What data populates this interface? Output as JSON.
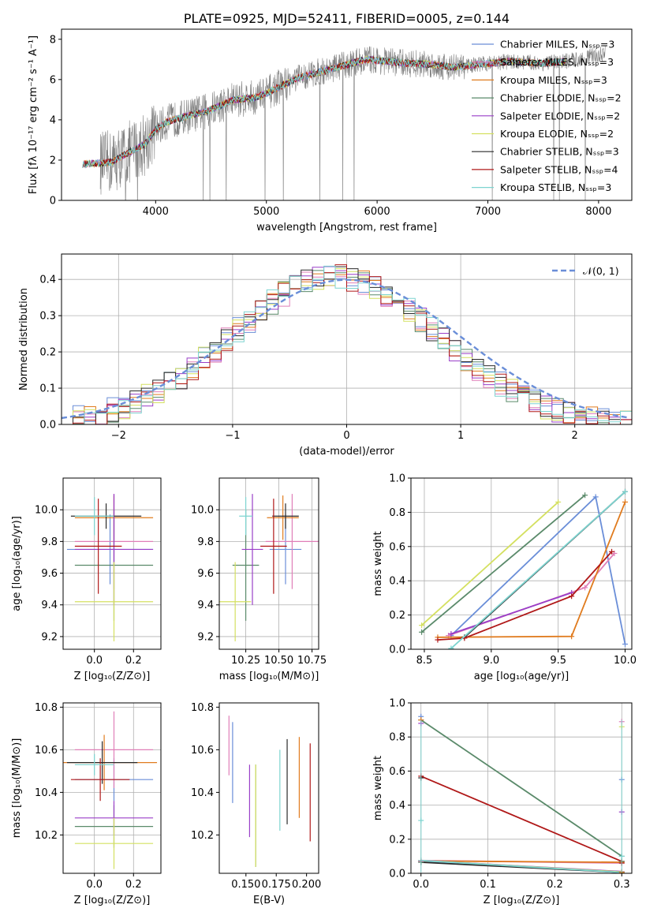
{
  "colors": {
    "Chabrier MILES": "#6a8ed8",
    "Salpeter MILES": "#e07fb8",
    "Kroupa MILES": "#e07b1e",
    "Chabrier ELODIE": "#5a8a6a",
    "Salpeter ELODIE": "#9a3fc8",
    "Kroupa ELODIE": "#d4e060",
    "Chabrier STELIB": "#2a2a2a",
    "Salpeter STELIB": "#b01818",
    "Kroupa STELIB": "#7dd4d0",
    "data": "#808080",
    "normal": "#6a8ed8"
  },
  "chart_data": [
    {
      "id": "spectrum",
      "type": "line",
      "title": "PLATE=0925, MJD=52411, FIBERID=0005, z=0.144",
      "xlabel": "wavelength [Angstrom, rest frame]",
      "ylabel": "Flux [fλ 10⁻¹⁷ erg cm⁻² s⁻¹ A⁻¹]",
      "xlim": [
        3150,
        8300
      ],
      "ylim": [
        0,
        8.5
      ],
      "xticks": [
        "4000",
        "5000",
        "6000",
        "7000",
        "8000"
      ],
      "yticks": [
        "0",
        "2",
        "4",
        "6",
        "8"
      ],
      "grid": false,
      "legend_position": "top-right",
      "legend": [
        "Chabrier MILES, Nₛₛₚ=3",
        "Salpeter MILES, Nₛₛₚ=3",
        "Kroupa MILES, Nₛₛₚ=3",
        "Chabrier ELODIE, Nₛₛₚ=2",
        "Salpeter ELODIE, Nₛₛₚ=2",
        "Kroupa ELODIE, Nₛₛₚ=2",
        "Chabrier STELIB, Nₛₛₚ=3",
        "Salpeter STELIB, Nₛₛₚ=4",
        "Kroupa STELIB, Nₛₛₚ=3"
      ],
      "continuum": [
        [
          3340,
          1.8
        ],
        [
          3500,
          1.85
        ],
        [
          3600,
          1.9
        ],
        [
          3800,
          2.5
        ],
        [
          3900,
          2.8
        ],
        [
          4000,
          3.5
        ],
        [
          4100,
          3.9
        ],
        [
          4300,
          4.2
        ],
        [
          4500,
          4.5
        ],
        [
          4700,
          5.0
        ],
        [
          4900,
          5.1
        ],
        [
          5000,
          5.3
        ],
        [
          5100,
          5.6
        ],
        [
          5200,
          5.85
        ],
        [
          5300,
          6.1
        ],
        [
          5500,
          6.4
        ],
        [
          5700,
          6.7
        ],
        [
          5900,
          7.0
        ],
        [
          6100,
          6.9
        ],
        [
          6300,
          6.8
        ],
        [
          6500,
          6.75
        ],
        [
          6700,
          6.6
        ],
        [
          7000,
          6.8
        ],
        [
          7200,
          6.9
        ],
        [
          7500,
          6.8
        ],
        [
          7700,
          6.9
        ],
        [
          7900,
          7.1
        ],
        [
          8060,
          7.3
        ]
      ],
      "data_wavelength_range": [
        3500,
        8060
      ]
    },
    {
      "id": "residuals",
      "type": "line",
      "xlabel": "(data-model)/error",
      "ylabel": "Normed distribution",
      "xlim": [
        -2.5,
        2.5
      ],
      "ylim": [
        0,
        0.47
      ],
      "xticks": [
        "−2",
        "−1",
        "0",
        "1",
        "2"
      ],
      "yticks": [
        "0.0",
        "0.1",
        "0.2",
        "0.3",
        "0.4"
      ],
      "grid": true,
      "legend_position": "top-right",
      "normal_label": "𝒩(0, 1)",
      "hist_bin_width": 0.1
    },
    {
      "id": "age_vs_Z",
      "type": "scatter",
      "xlabel": "Z [log₁₀(Z/Z⊙)]",
      "ylabel": "age  [log₁₀(age/yr)]",
      "xlim": [
        -0.16,
        0.34
      ],
      "ylim": [
        9.12,
        10.2
      ],
      "xticks": [
        "0.0",
        "0.2"
      ],
      "yticks": [
        "9.2",
        "9.4",
        "9.6",
        "9.8",
        "10.0"
      ],
      "grid": true,
      "points": [
        {
          "model": "Chabrier MILES",
          "x": 0.08,
          "y": 9.75,
          "xerr": 0.22,
          "yerr": 0.22
        },
        {
          "model": "Salpeter MILES",
          "x": 0.1,
          "y": 9.8,
          "xerr": 0.2,
          "yerr": 0.3
        },
        {
          "model": "Kroupa MILES",
          "x": 0.1,
          "y": 9.95,
          "xerr": 0.2,
          "yerr": 0.14
        },
        {
          "model": "Chabrier ELODIE",
          "x": 0.1,
          "y": 9.65,
          "xerr": 0.2,
          "yerr": 0.35
        },
        {
          "model": "Salpeter ELODIE",
          "x": 0.1,
          "y": 9.75,
          "xerr": 0.2,
          "yerr": 0.35
        },
        {
          "model": "Kroupa ELODIE",
          "x": 0.1,
          "y": 9.42,
          "xerr": 0.2,
          "yerr": 0.25
        },
        {
          "model": "Chabrier STELIB",
          "x": 0.06,
          "y": 9.96,
          "xerr": 0.18,
          "yerr": 0.08
        },
        {
          "model": "Salpeter STELIB",
          "x": 0.02,
          "y": 9.77,
          "xerr": 0.12,
          "yerr": 0.3
        },
        {
          "model": "Kroupa STELIB",
          "x": 0.0,
          "y": 9.96,
          "xerr": 0.1,
          "yerr": 0.12
        }
      ]
    },
    {
      "id": "age_vs_mass",
      "type": "scatter",
      "xlabel": "mass [log₁₀(M/M⊙)]",
      "ylabel": "",
      "xlim": [
        10.05,
        10.8
      ],
      "ylim": [
        9.12,
        10.2
      ],
      "xticks": [
        "10.25",
        "10.50",
        "10.75"
      ],
      "yticks": [
        "9.2",
        "9.4",
        "9.6",
        "9.8",
        "10.0"
      ],
      "grid": true,
      "points": [
        {
          "model": "Chabrier MILES",
          "x": 10.55,
          "y": 9.75,
          "xerr": 0.12,
          "yerr": 0.22
        },
        {
          "model": "Salpeter MILES",
          "x": 10.6,
          "y": 9.8,
          "xerr": 0.2,
          "yerr": 0.3
        },
        {
          "model": "Kroupa MILES",
          "x": 10.53,
          "y": 9.95,
          "xerr": 0.12,
          "yerr": 0.14
        },
        {
          "model": "Chabrier ELODIE",
          "x": 10.25,
          "y": 9.65,
          "xerr": 0.1,
          "yerr": 0.35
        },
        {
          "model": "Salpeter ELODIE",
          "x": 10.3,
          "y": 9.75,
          "xerr": 0.08,
          "yerr": 0.35
        },
        {
          "model": "Kroupa ELODIE",
          "x": 10.17,
          "y": 9.42,
          "xerr": 0.12,
          "yerr": 0.25
        },
        {
          "model": "Chabrier STELIB",
          "x": 10.55,
          "y": 9.96,
          "xerr": 0.1,
          "yerr": 0.08
        },
        {
          "model": "Salpeter STELIB",
          "x": 10.46,
          "y": 9.77,
          "xerr": 0.1,
          "yerr": 0.3
        },
        {
          "model": "Kroupa STELIB",
          "x": 10.25,
          "y": 9.96,
          "xerr": 0.05,
          "yerr": 0.12
        }
      ]
    },
    {
      "id": "weight_vs_age",
      "type": "line",
      "xlabel": "age  [log₁₀(age/yr)]",
      "ylabel": "mass weight",
      "xlim": [
        8.4,
        10.05
      ],
      "ylim": [
        0,
        1.0
      ],
      "xticks": [
        "8.5",
        "9.0",
        "9.5",
        "10.0"
      ],
      "yticks": [
        "0.0",
        "0.2",
        "0.4",
        "0.6",
        "0.8",
        "1.0"
      ],
      "grid": true,
      "series": [
        {
          "name": "Chabrier MILES",
          "x": [
            8.7,
            9.78,
            10.0
          ],
          "y": [
            0.08,
            0.89,
            0.03
          ]
        },
        {
          "name": "Salpeter MILES",
          "x": [
            8.68,
            9.7,
            9.92
          ],
          "y": [
            0.08,
            0.36,
            0.56
          ]
        },
        {
          "name": "Kroupa MILES",
          "x": [
            8.6,
            9.6,
            10.0
          ],
          "y": [
            0.07,
            0.075,
            0.86
          ]
        },
        {
          "name": "Chabrier ELODIE",
          "x": [
            8.48,
            9.7
          ],
          "y": [
            0.1,
            0.9
          ]
        },
        {
          "name": "Salpeter ELODIE",
          "x": [
            8.7,
            9.6
          ],
          "y": [
            0.09,
            0.33
          ]
        },
        {
          "name": "Kroupa ELODIE",
          "x": [
            8.48,
            9.5
          ],
          "y": [
            0.14,
            0.86
          ]
        },
        {
          "name": "Chabrier STELIB",
          "x": [
            8.8,
            10.0
          ],
          "y": [
            0.07,
            0.92
          ]
        },
        {
          "name": "Salpeter STELIB",
          "x": [
            8.6,
            8.8,
            9.6,
            9.9
          ],
          "y": [
            0.055,
            0.065,
            0.31,
            0.57
          ]
        },
        {
          "name": "Kroupa STELIB",
          "x": [
            8.7,
            10.0
          ],
          "y": [
            0.005,
            0.92
          ]
        }
      ]
    },
    {
      "id": "mass_vs_Z",
      "type": "scatter",
      "xlabel": "Z [log₁₀(Z/Z⊙)]",
      "ylabel": "mass [log₁₀(M/M⊙)]",
      "xlim": [
        -0.16,
        0.34
      ],
      "ylim": [
        10.02,
        10.82
      ],
      "xticks": [
        "0.0",
        "0.2"
      ],
      "yticks": [
        "10.2",
        "10.4",
        "10.6",
        "10.8"
      ],
      "grid": true,
      "points": [
        {
          "model": "Chabrier MILES",
          "x": 0.1,
          "y": 10.46,
          "xerr": 0.2,
          "yerr": 0.1
        },
        {
          "model": "Salpeter MILES",
          "x": 0.1,
          "y": 10.6,
          "xerr": 0.2,
          "yerr": 0.18
        },
        {
          "model": "Kroupa MILES",
          "x": 0.05,
          "y": 10.54,
          "xerr": 0.27,
          "yerr": 0.13
        },
        {
          "model": "Chabrier ELODIE",
          "x": 0.1,
          "y": 10.24,
          "xerr": 0.2,
          "yerr": 0.1
        },
        {
          "model": "Salpeter ELODIE",
          "x": 0.1,
          "y": 10.28,
          "xerr": 0.2,
          "yerr": 0.08
        },
        {
          "model": "Kroupa ELODIE",
          "x": 0.1,
          "y": 10.16,
          "xerr": 0.2,
          "yerr": 0.12
        },
        {
          "model": "Chabrier STELIB",
          "x": 0.04,
          "y": 10.54,
          "xerr": 0.18,
          "yerr": 0.1
        },
        {
          "model": "Salpeter STELIB",
          "x": 0.03,
          "y": 10.46,
          "xerr": 0.15,
          "yerr": 0.1
        },
        {
          "model": "Kroupa STELIB",
          "x": 0.0,
          "y": 10.53,
          "xerr": 0.1,
          "yerr": 0.05
        }
      ]
    },
    {
      "id": "mass_vs_ebv",
      "type": "scatter",
      "xlabel": "E(B-V)",
      "ylabel": "",
      "xlim": [
        0.128,
        0.21
      ],
      "ylim": [
        10.02,
        10.82
      ],
      "xticks": [
        "0.150",
        "0.175",
        "0.200"
      ],
      "yticks": [
        "10.2",
        "10.4",
        "10.6",
        "10.8"
      ],
      "grid": false,
      "points": [
        {
          "model": "Chabrier MILES",
          "x": 0.139,
          "y": 10.54,
          "yerr": 0.19
        },
        {
          "model": "Salpeter MILES",
          "x": 0.136,
          "y": 10.62,
          "yerr": 0.14
        },
        {
          "model": "Kroupa MILES",
          "x": 0.194,
          "y": 10.47,
          "yerr": 0.19
        },
        {
          "model": "Chabrier ELODIE",
          "x": 0.158,
          "y": 10.29,
          "yerr": 0.24
        },
        {
          "model": "Salpeter ELODIE",
          "x": 0.153,
          "y": 10.36,
          "yerr": 0.17
        },
        {
          "model": "Kroupa ELODIE",
          "x": 0.158,
          "y": 10.29,
          "yerr": 0.24
        },
        {
          "model": "Chabrier STELIB",
          "x": 0.184,
          "y": 10.45,
          "yerr": 0.2
        },
        {
          "model": "Salpeter STELIB",
          "x": 0.203,
          "y": 10.4,
          "yerr": 0.23
        },
        {
          "model": "Kroupa STELIB",
          "x": 0.178,
          "y": 10.41,
          "yerr": 0.19
        }
      ]
    },
    {
      "id": "weight_vs_Z",
      "type": "line",
      "xlabel": "Z [log₁₀(Z/Z⊙)]",
      "ylabel": "mass weight",
      "xlim": [
        -0.015,
        0.315
      ],
      "ylim": [
        0,
        1.0
      ],
      "xticks": [
        "0.0",
        "0.1",
        "0.2",
        "0.3"
      ],
      "yticks": [
        "0.0",
        "0.2",
        "0.4",
        "0.6",
        "0.8",
        "1.0"
      ],
      "grid": true,
      "series": [
        {
          "name": "Chabrier MILES",
          "x": [
            0.0,
            0.3
          ],
          "y": [
            0.07,
            0.005
          ]
        },
        {
          "name": "Salpeter MILES",
          "x": [
            0.0,
            0.3
          ],
          "y": [
            0.075,
            0.06
          ]
        },
        {
          "name": "Kroupa MILES",
          "x": [
            0.0,
            0.3
          ],
          "y": [
            0.072,
            0.065
          ]
        },
        {
          "name": "Chabrier ELODIE",
          "x": [
            0.0,
            0.3
          ],
          "y": [
            0.9,
            0.1
          ]
        },
        {
          "name": "Salpeter ELODIE",
          "x": [
            0.0,
            0.3
          ],
          "y": [
            0.075,
            0.01
          ]
        },
        {
          "name": "Kroupa ELODIE",
          "x": [
            0.0,
            0.3
          ],
          "y": [
            0.075,
            0.008
          ]
        },
        {
          "name": "Chabrier STELIB",
          "x": [
            0.0,
            0.3
          ],
          "y": [
            0.065,
            0.005
          ]
        },
        {
          "name": "Salpeter STELIB",
          "x": [
            0.0,
            0.3
          ],
          "y": [
            0.57,
            0.07
          ]
        },
        {
          "name": "Kroupa STELIB",
          "x": [
            0.0,
            0.3
          ],
          "y": [
            0.075,
            0.005
          ]
        }
      ],
      "edge_markers": {
        "x0": [
          0.92,
          0.9,
          0.88,
          0.56,
          0.31,
          0.07,
          0.065
        ],
        "x03": [
          0.89,
          0.86,
          0.55,
          0.36,
          0.1,
          0.07,
          0.06,
          0.005
        ]
      }
    }
  ]
}
